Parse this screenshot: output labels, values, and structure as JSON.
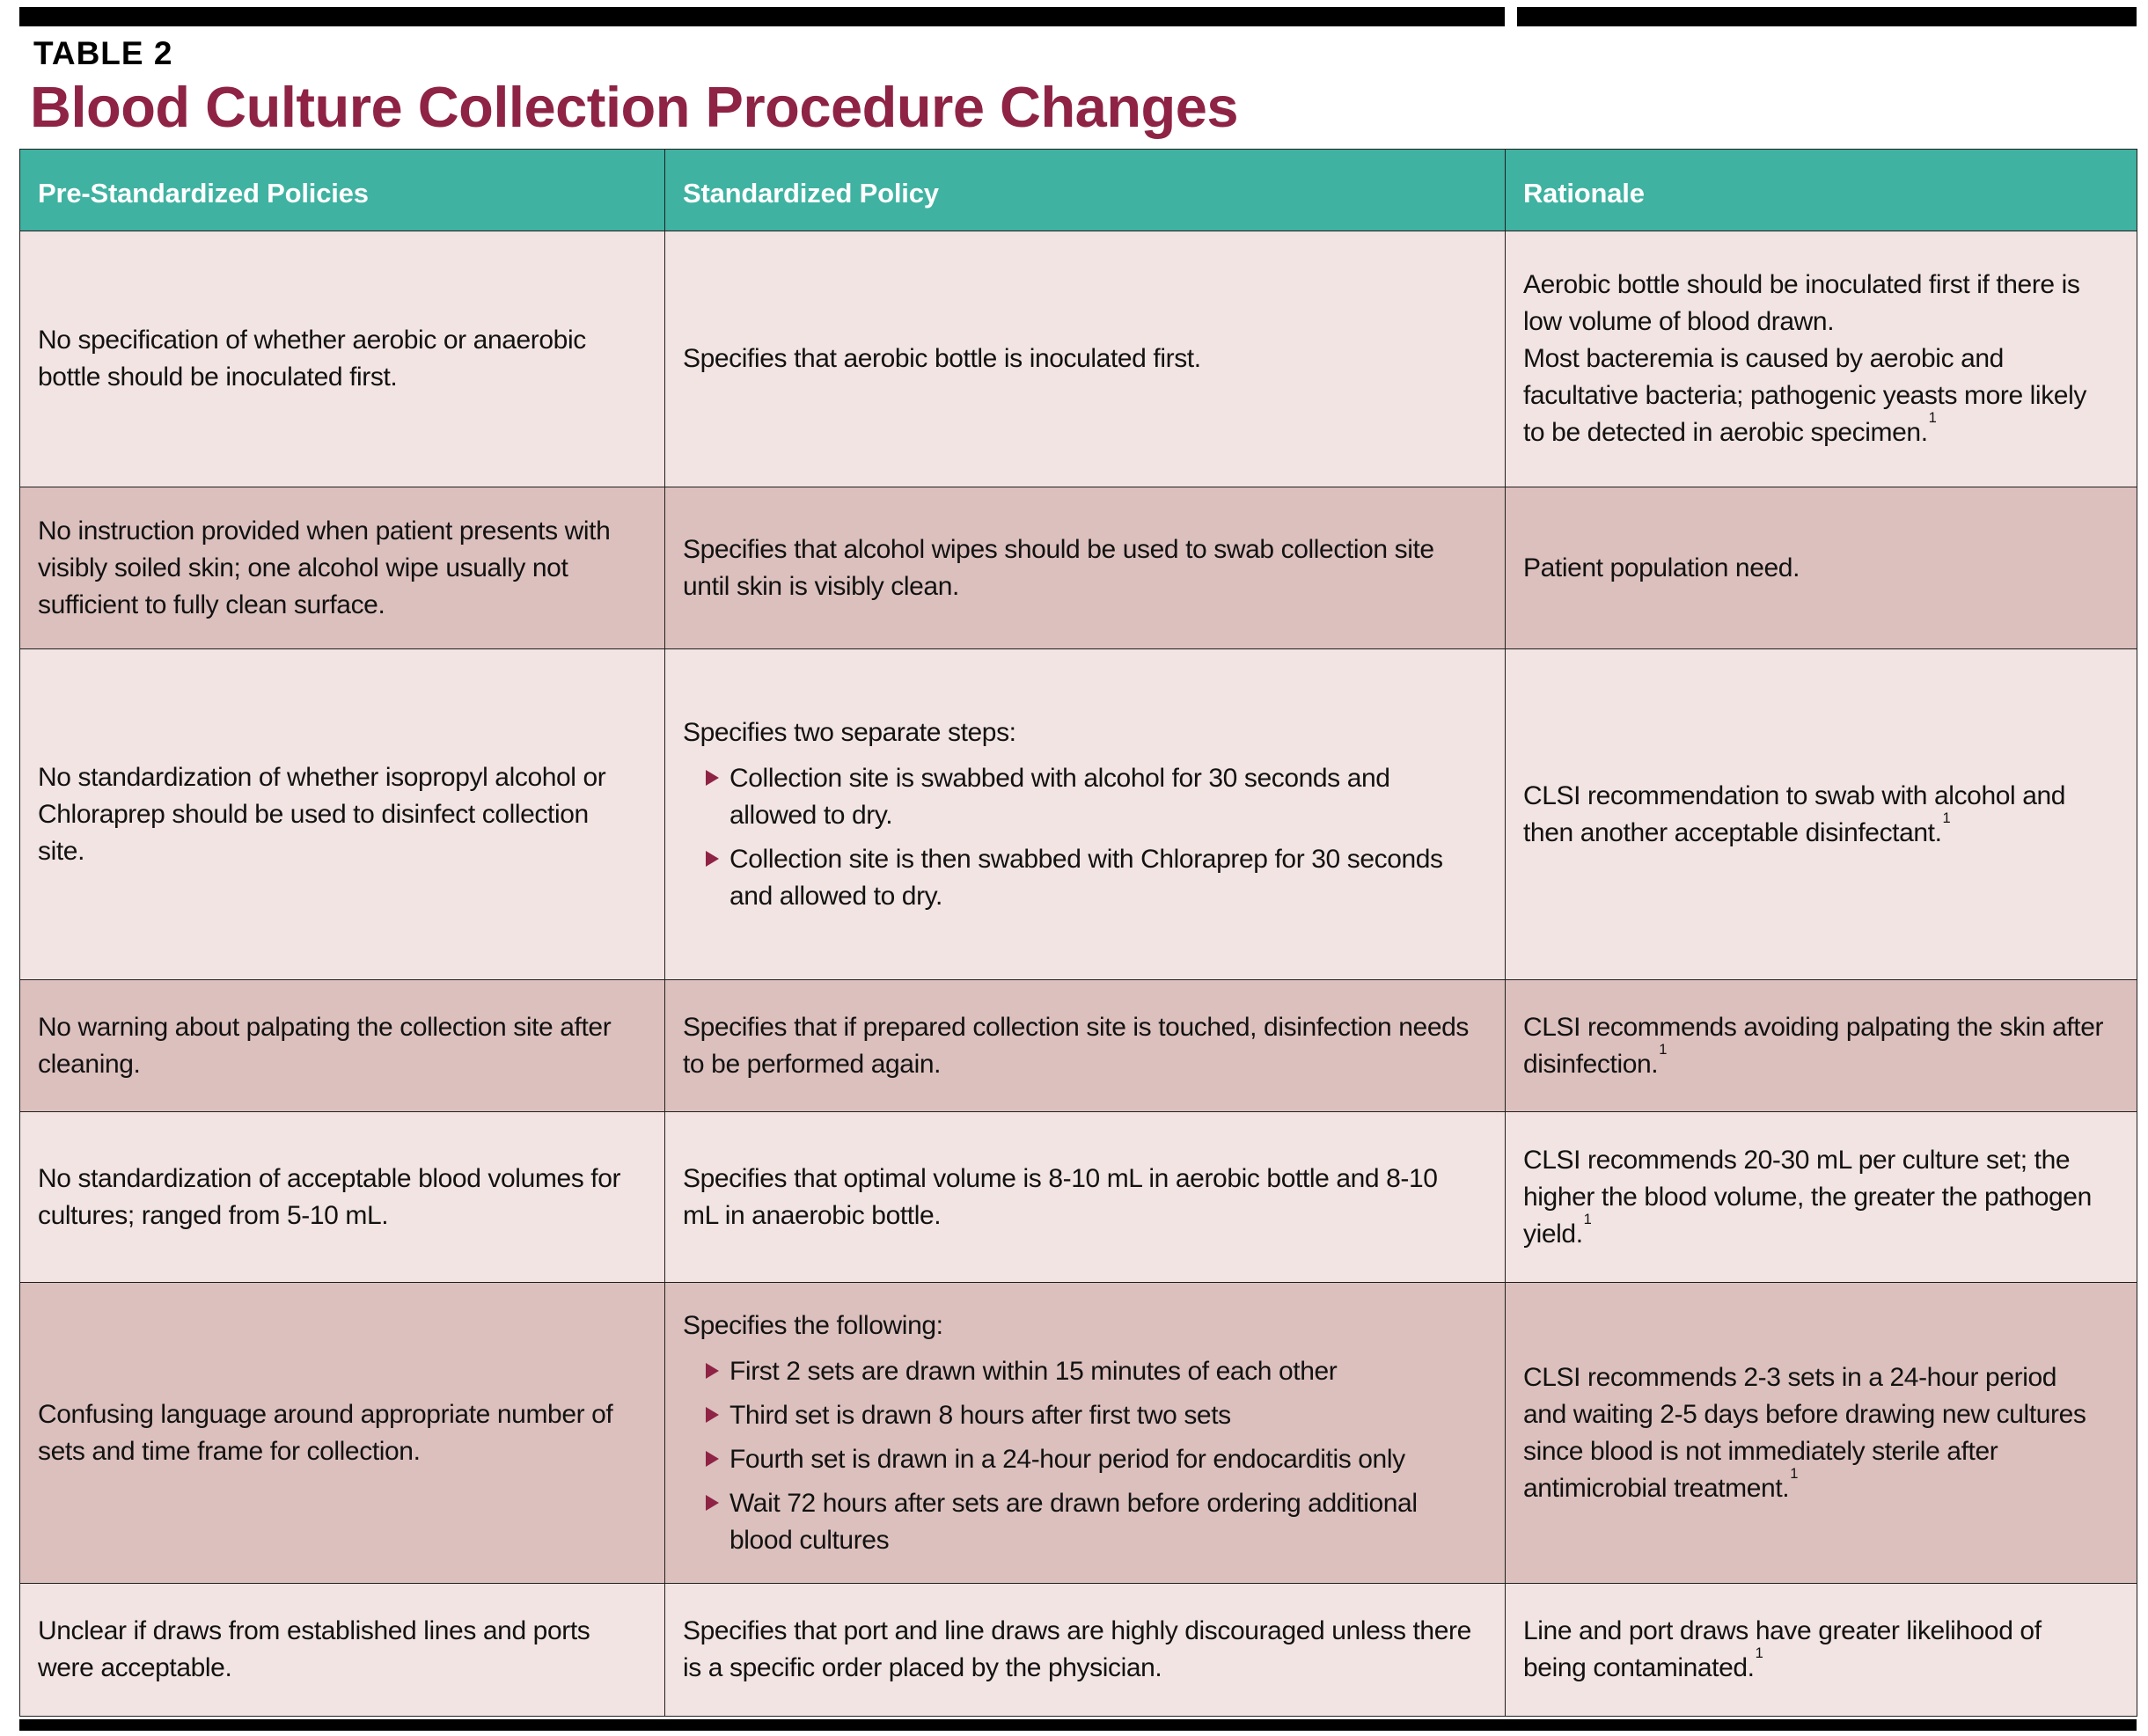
{
  "header": {
    "table_label": "TABLE 2",
    "title": "Blood Culture Collection Procedure Changes"
  },
  "columns": [
    "Pre-Standardized Policies",
    "Standardized Policy",
    "Rationale"
  ],
  "rows": [
    {
      "pre": "No specification of whether aerobic or anaerobic bottle should be inoculated first.",
      "policy": "Specifies that aerobic bottle is inoculated first.",
      "rationale_p1": "Aerobic bottle should be inoculated first if there is low volume of blood drawn.",
      "rationale_p2": "Most bacteremia is caused by aerobic and facultative bacteria; pathogenic yeasts more likely to be detected in aerobic specimen.",
      "rationale_sup": "1"
    },
    {
      "pre": "No instruction provided when patient presents with visibly soiled skin; one alcohol wipe usually not sufficient to fully clean surface.",
      "policy": "Specifies that alcohol wipes should be used to swab collection site until skin is visibly clean.",
      "rationale_p1": "Patient population need.",
      "rationale_sup": ""
    },
    {
      "pre": "No standardization of whether isopropyl alcohol or Chloraprep should be used to disinfect collection site.",
      "policy_intro": "Specifies two separate steps:",
      "policy_bullets": [
        "Collection site is swabbed with alcohol for 30 seconds and allowed to dry.",
        "Collection site is then swabbed with Chloraprep for 30 seconds and allowed to dry."
      ],
      "rationale_p1": "CLSI recommendation to swab with alcohol and then another acceptable disinfectant.",
      "rationale_sup": "1"
    },
    {
      "pre": "No warning about palpating the collection site after cleaning.",
      "policy": "Specifies that if prepared collection site is touched, disinfection needs to be performed again.",
      "rationale_p1": "CLSI recommends avoiding palpating the skin after disinfection.",
      "rationale_sup": "1"
    },
    {
      "pre": "No standardization of acceptable blood volumes for cultures; ranged from 5-10 mL.",
      "policy": "Specifies that optimal volume is 8-10 mL in aerobic bottle and 8-10 mL in anaerobic bottle.",
      "rationale_p1": "CLSI recommends 20-30 mL per culture set; the higher the blood volume, the greater the pathogen yield.",
      "rationale_sup": "1"
    },
    {
      "pre": "Confusing language around appropriate number of sets and time frame for collection.",
      "policy_intro": "Specifies the following:",
      "policy_bullets": [
        "First 2 sets are drawn within 15 minutes of each other",
        "Third set is drawn 8 hours after first two sets",
        "Fourth set is drawn in a 24-hour period for endocarditis only",
        "Wait 72 hours after sets are drawn before ordering additional blood cultures"
      ],
      "rationale_p1": "CLSI recommends 2-3 sets in a 24-hour period and waiting 2-5 days before drawing new cultures since blood is not immediately sterile after antimicrobial treatment.",
      "rationale_sup": "1"
    },
    {
      "pre": "Unclear if draws from established lines and ports were acceptable.",
      "policy": "Specifies that port and line draws are highly discouraged unless there is a specific order placed by the physician.",
      "rationale_p1": "Line and port draws have greater likelihood of being contaminated.",
      "rationale_sup": "1"
    }
  ],
  "colors": {
    "header_teal": "#3FB2A1",
    "row_light": "#F2E4E2",
    "row_dark": "#DCC0BD",
    "title_maroon": "#8E2345",
    "bullet_maroon": "#8E2345",
    "bar_black": "#000000"
  }
}
